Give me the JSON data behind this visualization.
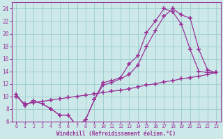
{
  "xlabel": "Windchill (Refroidissement éolien,°C)",
  "line1_x": [
    0,
    1,
    2,
    3,
    4,
    5,
    6,
    7,
    8,
    9,
    10,
    11,
    12,
    13,
    14,
    15,
    16,
    17,
    18,
    19,
    20,
    21,
    22,
    23
  ],
  "line1_y": [
    10.3,
    8.5,
    9.3,
    8.8,
    8.0,
    7.0,
    7.0,
    5.2,
    6.3,
    9.5,
    12.2,
    12.5,
    13.0,
    15.2,
    16.5,
    20.2,
    22.0,
    24.0,
    23.5,
    21.5,
    17.5,
    14.0,
    13.8,
    13.8
  ],
  "line2_x": [
    0,
    1,
    2,
    3,
    4,
    5,
    6,
    7,
    8,
    9,
    10,
    11,
    12,
    13,
    14,
    15,
    16,
    17,
    18,
    19,
    20,
    21,
    22,
    23
  ],
  "line2_y": [
    10.3,
    8.5,
    9.3,
    8.8,
    8.0,
    7.0,
    7.0,
    5.2,
    6.3,
    9.5,
    11.8,
    12.2,
    12.8,
    13.5,
    15.0,
    18.0,
    20.5,
    22.8,
    24.0,
    23.0,
    22.5,
    17.5,
    14.2,
    13.8
  ],
  "line3_x": [
    0,
    1,
    2,
    3,
    4,
    5,
    6,
    7,
    8,
    9,
    10,
    11,
    12,
    13,
    14,
    15,
    16,
    17,
    18,
    19,
    20,
    21,
    22,
    23
  ],
  "line3_y": [
    10.0,
    8.8,
    9.0,
    9.2,
    9.4,
    9.6,
    9.8,
    10.0,
    10.2,
    10.4,
    10.6,
    10.8,
    11.0,
    11.2,
    11.5,
    11.8,
    12.0,
    12.3,
    12.5,
    12.8,
    13.0,
    13.2,
    13.5,
    13.8
  ],
  "color": "#993399",
  "bg_color": "#cce8e8",
  "grid_color": "#99cccc",
  "ylim": [
    6,
    25
  ],
  "xlim": [
    -0.5,
    23.5
  ],
  "yticks": [
    6,
    8,
    10,
    12,
    14,
    16,
    18,
    20,
    22,
    24
  ],
  "xticks": [
    0,
    1,
    2,
    3,
    4,
    5,
    6,
    7,
    8,
    9,
    10,
    11,
    12,
    13,
    14,
    15,
    16,
    17,
    18,
    19,
    20,
    21,
    22,
    23
  ]
}
